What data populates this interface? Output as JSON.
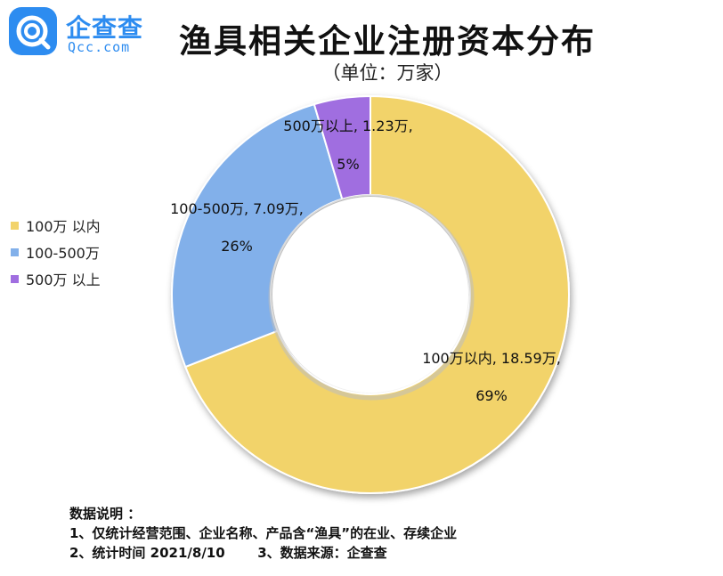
{
  "header": {
    "logo_cn": "企查查",
    "logo_en": "Qcc.com",
    "title": "渔具相关企业注册资本分布",
    "unit": "（单位：万家）"
  },
  "chart_data": {
    "type": "pie",
    "donut": true,
    "legend_position": "left",
    "slices": [
      {
        "name": "100万以内",
        "value": 18.59,
        "value_label": "18.59万",
        "percent_label": "69%",
        "legend_label": "100万 以内",
        "color": "#F2D36B"
      },
      {
        "name": "100-500万",
        "value": 7.09,
        "value_label": "7.09万",
        "percent_label": "26%",
        "legend_label": "100-500万",
        "color": "#82B0EA"
      },
      {
        "name": "500万以上",
        "value": 1.23,
        "value_label": "1.23万",
        "percent_label": "5%",
        "legend_label": "500万 以上",
        "color": "#A06EE0"
      }
    ]
  },
  "notes": {
    "heading": "数据说明 ：",
    "line1": "1、仅统计经营范围、企业名称、产品含“渔具”的在业、存续企业",
    "line2": "2、统计时间 2021/8/10       3、数据来源：企查查"
  }
}
